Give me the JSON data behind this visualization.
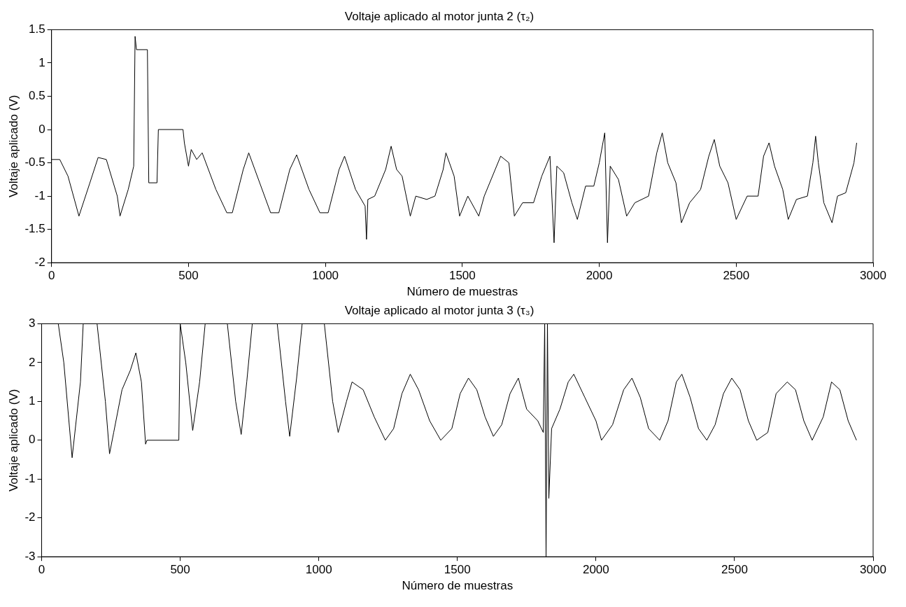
{
  "chart_data": [
    {
      "type": "line",
      "title": "Voltaje aplicado al motor junta 2 (τ₂)",
      "xlabel": "Número de muestras",
      "ylabel": "Voltaje aplicado (V)",
      "xlim": [
        0,
        3000
      ],
      "xticks": [
        0,
        500,
        1000,
        1500,
        2000,
        2500,
        3000
      ],
      "ylim": [
        -2,
        1.5
      ],
      "yticks": [
        -2,
        -1.5,
        -1,
        -0.5,
        0,
        0.5,
        1,
        1.5
      ],
      "grid": false,
      "legend": false,
      "marker": "none",
      "line_style": "solid",
      "x": [
        0,
        30,
        60,
        100,
        140,
        170,
        200,
        240,
        250,
        280,
        300,
        305,
        310,
        350,
        355,
        385,
        390,
        480,
        485,
        500,
        510,
        530,
        550,
        600,
        640,
        660,
        700,
        720,
        760,
        800,
        830,
        870,
        895,
        940,
        980,
        1010,
        1050,
        1070,
        1110,
        1145,
        1150,
        1155,
        1180,
        1220,
        1240,
        1260,
        1280,
        1310,
        1330,
        1370,
        1400,
        1430,
        1440,
        1470,
        1490,
        1520,
        1560,
        1580,
        1620,
        1640,
        1670,
        1690,
        1720,
        1760,
        1790,
        1820,
        1835,
        1845,
        1870,
        1900,
        1920,
        1950,
        1980,
        2000,
        2020,
        2030,
        2040,
        2070,
        2100,
        2130,
        2180,
        2210,
        2230,
        2250,
        2280,
        2300,
        2330,
        2370,
        2400,
        2420,
        2440,
        2470,
        2500,
        2540,
        2580,
        2600,
        2620,
        2640,
        2670,
        2690,
        2720,
        2760,
        2780,
        2790,
        2800,
        2820,
        2850,
        2870,
        2900,
        2930,
        2940
      ],
      "series": [
        {
          "color": "#000000",
          "values": [
            -0.45,
            -0.45,
            -0.7,
            -1.3,
            -0.8,
            -0.42,
            -0.45,
            -1.0,
            -1.3,
            -0.9,
            -0.55,
            1.4,
            1.2,
            1.2,
            -0.8,
            -0.8,
            0,
            0,
            -0.2,
            -0.55,
            -0.3,
            -0.45,
            -0.35,
            -0.9,
            -1.25,
            -1.25,
            -0.6,
            -0.35,
            -0.8,
            -1.25,
            -1.25,
            -0.6,
            -0.38,
            -0.9,
            -1.25,
            -1.25,
            -0.6,
            -0.4,
            -0.9,
            -1.15,
            -1.65,
            -1.05,
            -1.0,
            -0.6,
            -0.25,
            -0.6,
            -0.7,
            -1.3,
            -1.0,
            -1.05,
            -1.0,
            -0.6,
            -0.35,
            -0.7,
            -1.3,
            -1.0,
            -1.3,
            -1.0,
            -0.6,
            -0.4,
            -0.5,
            -1.3,
            -1.1,
            -1.1,
            -0.7,
            -0.4,
            -1.7,
            -0.55,
            -0.65,
            -1.1,
            -1.35,
            -0.85,
            -0.85,
            -0.5,
            -0.05,
            -1.7,
            -0.55,
            -0.75,
            -1.3,
            -1.1,
            -1.0,
            -0.35,
            -0.05,
            -0.5,
            -0.8,
            -1.4,
            -1.1,
            -0.9,
            -0.4,
            -0.15,
            -0.55,
            -0.8,
            -1.35,
            -1.0,
            -1.0,
            -0.4,
            -0.2,
            -0.55,
            -0.9,
            -1.35,
            -1.05,
            -1.0,
            -0.5,
            -0.1,
            -0.5,
            -1.1,
            -1.4,
            -1.0,
            -0.95,
            -0.5,
            -0.2
          ]
        }
      ]
    },
    {
      "type": "line",
      "title": "Voltaje aplicado al motor junta 3 (τ₃)",
      "xlabel": "Número de muestras",
      "ylabel": "Voltaje aplicado (V)",
      "xlim": [
        0,
        3000
      ],
      "xticks": [
        0,
        500,
        1000,
        1500,
        2000,
        2500,
        3000
      ],
      "ylim": [
        -3,
        3
      ],
      "yticks": [
        -3,
        -2,
        -1,
        0,
        1,
        2,
        3
      ],
      "grid": false,
      "legend": false,
      "marker": "none",
      "line_style": "solid",
      "x": [
        0,
        60,
        80,
        110,
        140,
        150,
        200,
        230,
        245,
        260,
        290,
        320,
        340,
        360,
        375,
        380,
        495,
        500,
        520,
        545,
        570,
        590,
        670,
        700,
        720,
        740,
        760,
        850,
        880,
        895,
        920,
        940,
        1020,
        1050,
        1070,
        1100,
        1120,
        1160,
        1200,
        1240,
        1270,
        1300,
        1330,
        1360,
        1400,
        1440,
        1480,
        1510,
        1540,
        1570,
        1600,
        1630,
        1660,
        1690,
        1720,
        1750,
        1790,
        1810,
        1815,
        1820,
        1825,
        1830,
        1840,
        1870,
        1900,
        1920,
        1960,
        2000,
        2020,
        2060,
        2100,
        2130,
        2160,
        2190,
        2230,
        2260,
        2290,
        2310,
        2340,
        2370,
        2400,
        2430,
        2460,
        2490,
        2520,
        2550,
        2580,
        2620,
        2650,
        2690,
        2720,
        2750,
        2780,
        2820,
        2850,
        2880,
        2910,
        2940
      ],
      "series": [
        {
          "color": "#000000",
          "values": [
            3,
            3,
            2,
            -0.45,
            1.5,
            3,
            3,
            1.0,
            -0.35,
            0.2,
            1.3,
            1.8,
            2.25,
            1.5,
            -0.1,
            0,
            0,
            3,
            2.0,
            0.25,
            1.5,
            3,
            3,
            1.0,
            0.15,
            1.5,
            3,
            3,
            1.0,
            0.1,
            1.6,
            3,
            3,
            1.0,
            0.2,
            1.0,
            1.5,
            1.3,
            0.6,
            0.0,
            0.3,
            1.2,
            1.7,
            1.3,
            0.5,
            0.0,
            0.3,
            1.2,
            1.6,
            1.3,
            0.6,
            0.1,
            0.4,
            1.2,
            1.6,
            0.8,
            0.5,
            0.2,
            3,
            -3,
            3,
            -1.5,
            0.3,
            0.8,
            1.5,
            1.7,
            1.1,
            0.5,
            0.0,
            0.4,
            1.3,
            1.6,
            1.1,
            0.3,
            0.0,
            0.5,
            1.5,
            1.7,
            1.1,
            0.3,
            0.0,
            0.4,
            1.2,
            1.6,
            1.3,
            0.5,
            0.0,
            0.2,
            1.2,
            1.5,
            1.3,
            0.5,
            0.0,
            0.6,
            1.5,
            1.3,
            0.5,
            0.0
          ]
        }
      ]
    }
  ]
}
